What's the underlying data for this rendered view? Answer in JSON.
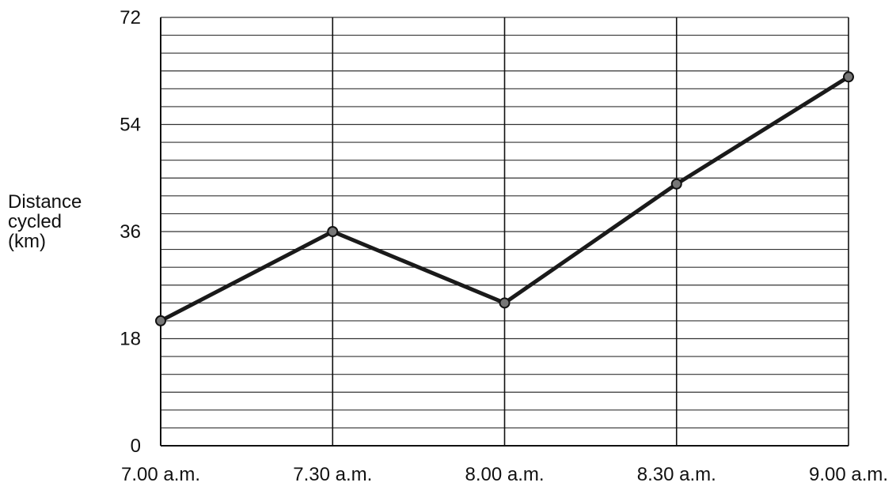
{
  "chart_data": {
    "type": "line",
    "x": [
      "7.00 a.m.",
      "7.30 a.m.",
      "8.00 a.m.",
      "8.30 a.m.",
      "9.00 a.m."
    ],
    "y": [
      21,
      36,
      24,
      44,
      62
    ],
    "ylabel_lines": [
      "Distance",
      "cycled",
      "(km)"
    ],
    "xlabel": "",
    "ylim": [
      0,
      72
    ],
    "yticks": [
      0,
      18,
      36,
      54,
      72
    ],
    "grid": true,
    "minor_gridlines_per_major": 6,
    "line_color": "#1a1a1a",
    "grid_color": "#333333"
  }
}
